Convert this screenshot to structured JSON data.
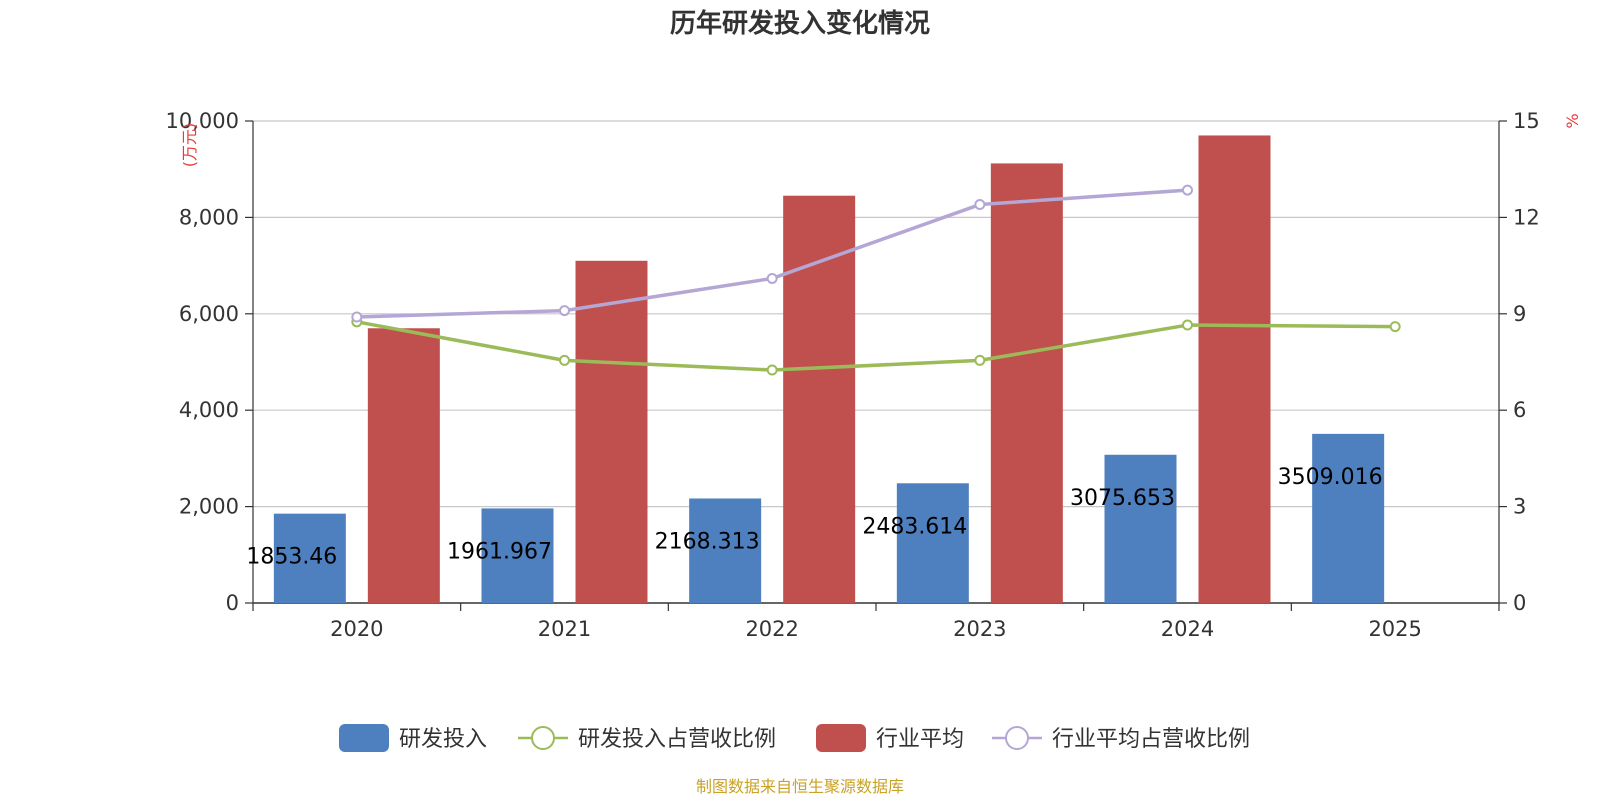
{
  "title": "历年研发投入变化情况",
  "source": "制图数据来自恒生聚源数据库",
  "chart_data": {
    "type": "bar",
    "categories": [
      "2020",
      "2021",
      "2022",
      "2023",
      "2024",
      "2025"
    ],
    "y_left": {
      "unit": "万元",
      "min": 0,
      "max": 10000,
      "ticks": [
        0,
        2000,
        4000,
        6000,
        8000,
        10000
      ],
      "tick_labels": [
        "0",
        "2,000",
        "4,000",
        "6,000",
        "8,000",
        "10,000"
      ]
    },
    "y_right": {
      "unit": "%",
      "min": 0,
      "max": 15,
      "ticks": [
        0,
        3,
        6,
        9,
        12,
        15
      ],
      "tick_labels": [
        "0",
        "3",
        "6",
        "9",
        "12",
        "15"
      ]
    },
    "grid": true,
    "legend_position": "bottom",
    "series": [
      {
        "name": "研发投入",
        "kind": "bar",
        "axis": "left",
        "color": "#4e7fbf",
        "values": [
          1853.46,
          1961.967,
          2168.313,
          2483.614,
          3075.653,
          3509.016
        ],
        "labels": [
          "1853.46",
          "1961.967",
          "2168.313",
          "2483.614",
          "3075.653",
          "3509.016"
        ]
      },
      {
        "name": "研发投入占营收比例",
        "kind": "line",
        "axis": "right",
        "color": "#9bbb59",
        "values": [
          8.75,
          7.55,
          7.25,
          7.55,
          8.65,
          8.6
        ]
      },
      {
        "name": "行业平均",
        "kind": "bar",
        "axis": "left",
        "color": "#c0504d",
        "values": [
          5700,
          7100,
          8450,
          9120,
          9700,
          null
        ]
      },
      {
        "name": "行业平均占营收比例",
        "kind": "line",
        "axis": "right",
        "color": "#b4a7d6",
        "values": [
          8.9,
          9.1,
          10.1,
          12.4,
          12.85,
          null
        ]
      }
    ]
  }
}
